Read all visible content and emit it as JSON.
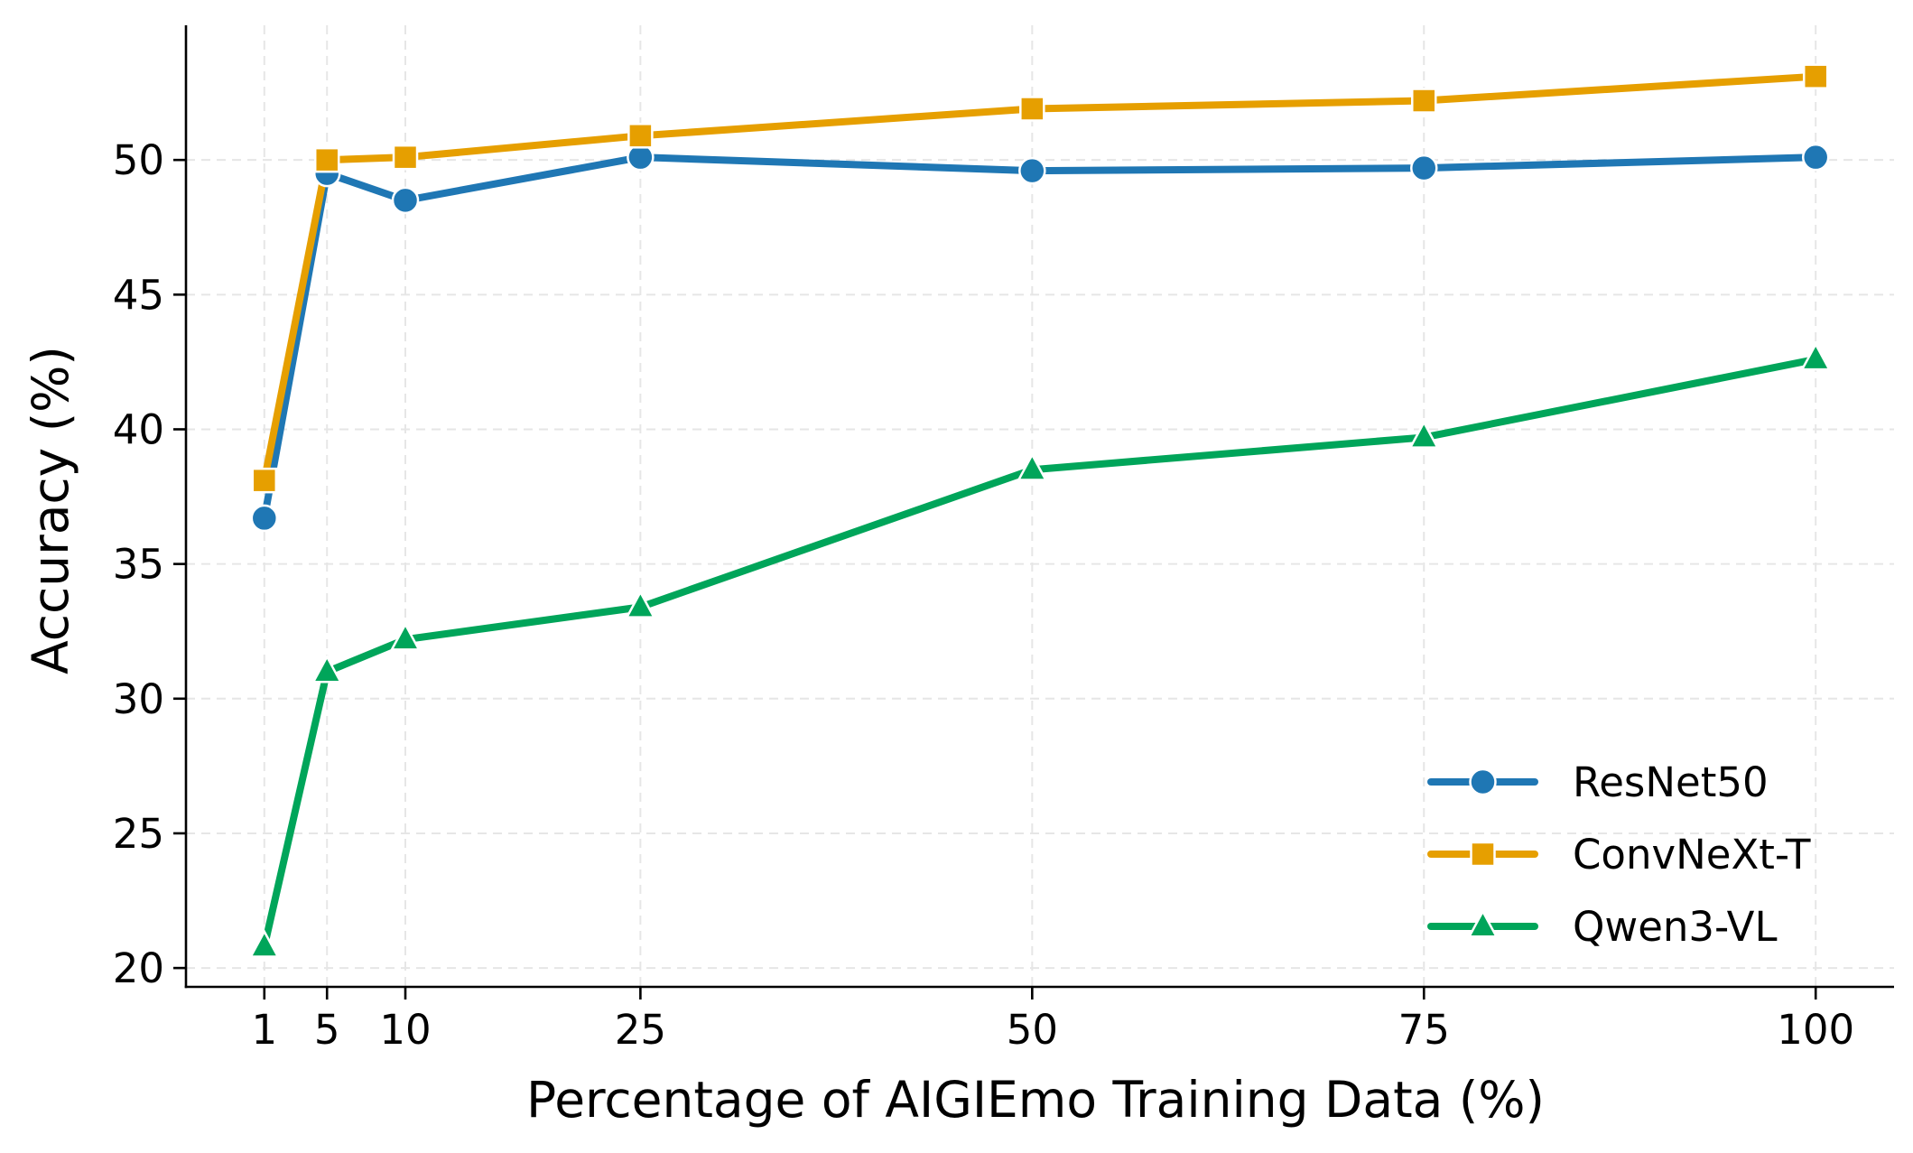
{
  "chart_data": {
    "type": "line",
    "x": [
      1,
      5,
      10,
      25,
      50,
      75,
      100
    ],
    "xticks": [
      "1",
      "5",
      "10",
      "25",
      "50",
      "75",
      "100"
    ],
    "yticks": [
      "20",
      "25",
      "30",
      "35",
      "40",
      "45",
      "50"
    ],
    "xlim": [
      -4,
      105
    ],
    "ylim": [
      19.3,
      55
    ],
    "xlabel": "Percentage of AIGIEmo Training Data (%)",
    "ylabel": "Accuracy (%)",
    "grid": true,
    "legend_position": "bottom-right",
    "series": [
      {
        "name": "ResNet50",
        "color": "#1f77b4",
        "marker": "circle",
        "values": [
          36.7,
          49.5,
          48.5,
          50.1,
          49.6,
          49.7,
          50.1
        ]
      },
      {
        "name": "ConvNeXt-T",
        "color": "#e69f00",
        "marker": "square",
        "values": [
          38.1,
          50.0,
          50.1,
          50.9,
          51.9,
          52.2,
          53.1
        ]
      },
      {
        "name": "Qwen3-VL",
        "color": "#00a55a",
        "marker": "triangle",
        "values": [
          20.8,
          31.0,
          32.2,
          33.4,
          38.5,
          39.7,
          42.6
        ]
      }
    ]
  }
}
